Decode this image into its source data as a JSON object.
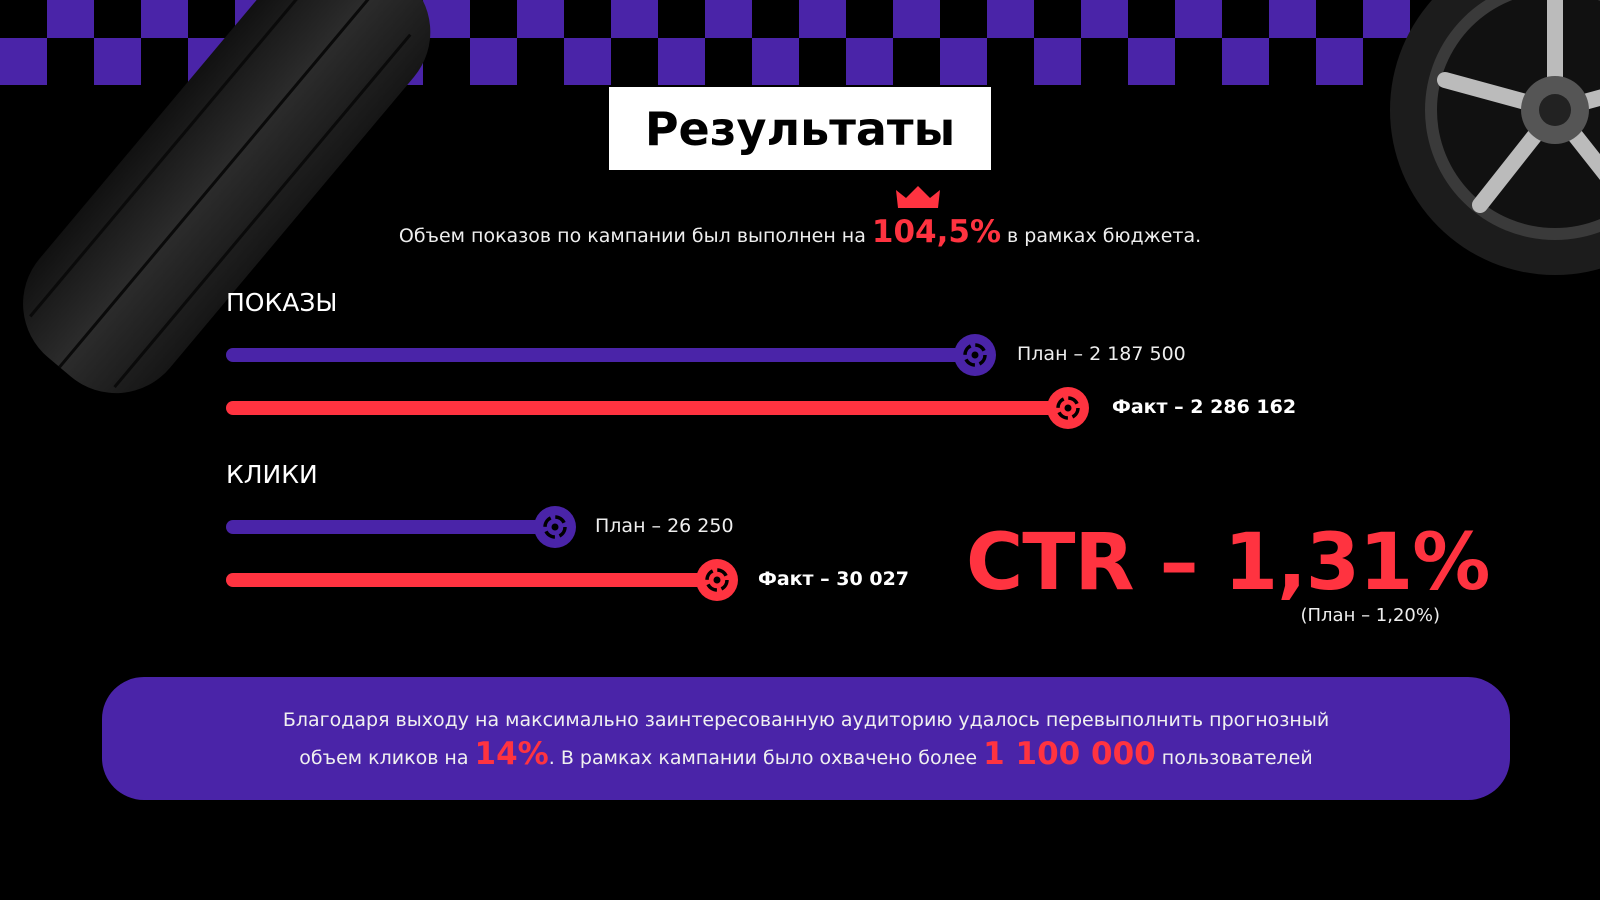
{
  "title": "Результаты",
  "summary": {
    "before": "Объем показов по кампании был выполнен на ",
    "highlight": "104,5%",
    "after": " в рамках бюджета."
  },
  "impressions": {
    "heading": "ПОКАЗЫ",
    "plan_label": "План – 2 187 500",
    "fact_label": "Факт – 2 286 162",
    "plan_value": 2187500,
    "fact_value": 2286162
  },
  "clicks": {
    "heading": "КЛИКИ",
    "plan_label": "План – 26 250",
    "fact_label": "Факт – 30 027",
    "plan_value": 26250,
    "fact_value": 30027
  },
  "ctr": {
    "value": "CTR – 1,31%",
    "plan": "(План – 1,20%)"
  },
  "footer": {
    "line1": "Благодаря выходу на максимально заинтересованную аудиторию удалось перевыполнить прогнозный",
    "line2_a": "объем кликов на ",
    "line2_hl1": "14%",
    "line2_b": ". В рамках кампании было охвачено более ",
    "line2_hl2": "1 100 000",
    "line2_c": " пользователей"
  },
  "colors": {
    "plan": "#4a24a8",
    "fact": "#ff3340",
    "background": "#000000"
  }
}
